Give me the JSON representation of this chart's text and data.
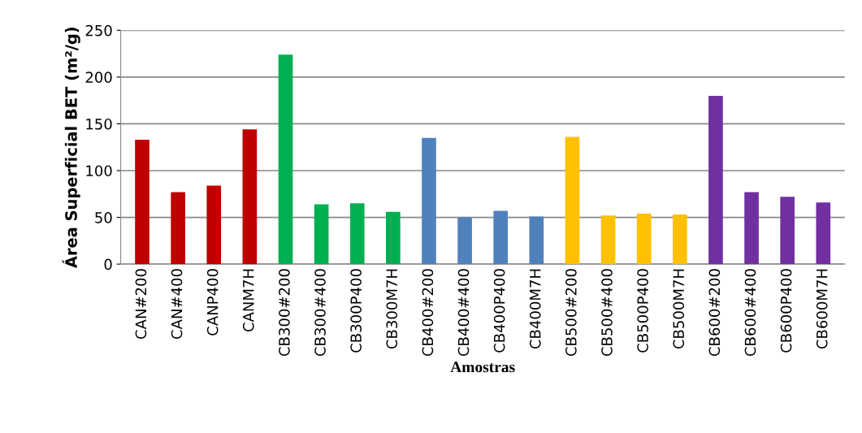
{
  "chart_data": {
    "type": "bar",
    "xlabel": "Amostras",
    "ylabel": "Área Superficial BET (m²/g)",
    "categories": [
      "CAN#200",
      "CAN#400",
      "CANP400",
      "CANM7H",
      "CB300#200",
      "CB300#400",
      "CB300P400",
      "CB300M7H",
      "CB400#200",
      "CB400#400",
      "CB400P400",
      "CB400M7H",
      "CB500#200",
      "CB500#400",
      "CB500P400",
      "CB500M7H",
      "CB600#200",
      "CB600#400",
      "CB600P400",
      "CB600M7H"
    ],
    "values": [
      133,
      77,
      84,
      144,
      224,
      64,
      65,
      56,
      135,
      50,
      57,
      51,
      136,
      52,
      54,
      53,
      180,
      77,
      72,
      66
    ],
    "colors": [
      "#c00000",
      "#c00000",
      "#c00000",
      "#c00000",
      "#00b050",
      "#00b050",
      "#00b050",
      "#00b050",
      "#4f81bd",
      "#4f81bd",
      "#4f81bd",
      "#4f81bd",
      "#ffc000",
      "#ffc000",
      "#ffc000",
      "#ffc000",
      "#7030a0",
      "#7030a0",
      "#7030a0",
      "#7030a0"
    ],
    "ylim": [
      0,
      250
    ],
    "yticks": [
      0,
      50,
      100,
      150,
      200,
      250
    ],
    "grid": "y",
    "legend": false
  }
}
